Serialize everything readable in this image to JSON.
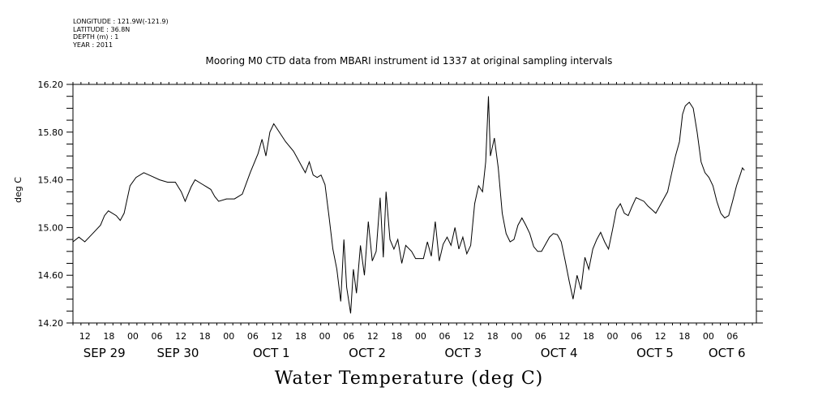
{
  "header": {
    "longitude": "LONGITUDE : 121.9W(-121.9)",
    "latitude": "LATITUDE : 36.8N",
    "depth": "DEPTH (m) : 1",
    "year": "YEAR : 2011"
  },
  "chart_data": {
    "type": "line",
    "title": "Mooring M0 CTD data from MBARI instrument id 1337 at original sampling intervals",
    "xlabel": "Water Temperature (deg C)",
    "ylabel": "deg C",
    "ylim": [
      14.2,
      16.2
    ],
    "yticks": [
      "14.20",
      "14.60",
      "15.00",
      "15.40",
      "15.80",
      "16.20"
    ],
    "xlim": [
      "2011-09-29 09:00",
      "2011-10-06 12:00"
    ],
    "x_hour_ticks": [
      "12",
      "18",
      "00",
      "06",
      "12",
      "18",
      "00",
      "06",
      "12",
      "18",
      "00",
      "06",
      "12",
      "18",
      "00",
      "06",
      "12",
      "18",
      "00",
      "06",
      "12",
      "18",
      "00",
      "06",
      "12",
      "18",
      "00",
      "06"
    ],
    "x_day_labels": [
      "SEP 29",
      "SEP 30",
      "OCT  1",
      "OCT  2",
      "OCT  3",
      "OCT  4",
      "OCT  5",
      "OCT  6"
    ],
    "grid": false,
    "series": [
      {
        "color": "#000000",
        "hours_since_2011-09-29_09:00": [
          0,
          2,
          4,
          6,
          8,
          10,
          12,
          13,
          15,
          17,
          18,
          20,
          22,
          24,
          26,
          28,
          30,
          33,
          36,
          38,
          40,
          42,
          43,
          44,
          46,
          48,
          50,
          52,
          54,
          56,
          58,
          60,
          62,
          63,
          64,
          66,
          68,
          70,
          71,
          72,
          73,
          74,
          76,
          78,
          80,
          82,
          84,
          86,
          88,
          90,
          91,
          92,
          94,
          96,
          97,
          98,
          99,
          100,
          101,
          102,
          103,
          104,
          105,
          106,
          107,
          108,
          109,
          110,
          111,
          112,
          113,
          114,
          115,
          116,
          117,
          118,
          119,
          120,
          121,
          122,
          123,
          124,
          125,
          126,
          127,
          128,
          130,
          132,
          134,
          136,
          138,
          140,
          142,
          143,
          144,
          146,
          148,
          150,
          151,
          152,
          153,
          154,
          155,
          156,
          157,
          158,
          159,
          160,
          162,
          164,
          166,
          168,
          170,
          172,
          174,
          176,
          178,
          180,
          182,
          184,
          186,
          188,
          190,
          192,
          194,
          196,
          198,
          200,
          202,
          204,
          206,
          208,
          210,
          212,
          214,
          215,
          216,
          218,
          220,
          222,
          224,
          226,
          228,
          230,
          232,
          234,
          236,
          238,
          240,
          242,
          244,
          246,
          248,
          250,
          252,
          254,
          256,
          258,
          260,
          262,
          264,
          266,
          268,
          270,
          272,
          274,
          276,
          278,
          280,
          282,
          284,
          286,
          288,
          290,
          292,
          294,
          296,
          298,
          300,
          302,
          304,
          306,
          308,
          310,
          312,
          314,
          316,
          318,
          320,
          322,
          324,
          326,
          328,
          330,
          332,
          334,
          336,
          338,
          340,
          342,
          344,
          346,
          348,
          350,
          352,
          354,
          356,
          358,
          360,
          362,
          364,
          366,
          368,
          370,
          372,
          374,
          376,
          378,
          380,
          382,
          384,
          386,
          388,
          390,
          392,
          394,
          396,
          398,
          400,
          402,
          404,
          406,
          408,
          410,
          412,
          414,
          416,
          418,
          420,
          422,
          424,
          426,
          428,
          430,
          432,
          434,
          436,
          438,
          440,
          442,
          444,
          446,
          448,
          450,
          452,
          454,
          456,
          458,
          460,
          462,
          464,
          466,
          468,
          470,
          472,
          474,
          476,
          478,
          480,
          482,
          484,
          486,
          488,
          490,
          492,
          494,
          496,
          498,
          500,
          502,
          504,
          506,
          508,
          510,
          512,
          514,
          516,
          518,
          520,
          522,
          524,
          526,
          528,
          530,
          532,
          534,
          536,
          538,
          540,
          542,
          544,
          546,
          548,
          550,
          552,
          554,
          556,
          558,
          560,
          562,
          564,
          566,
          568,
          570,
          572,
          574,
          576,
          578,
          580,
          582,
          584,
          586,
          588,
          590,
          592,
          594,
          596,
          598,
          600,
          602,
          604,
          606,
          608,
          610,
          612,
          614,
          616,
          618,
          620,
          622,
          624,
          626,
          628,
          630,
          632,
          634,
          636,
          638,
          640,
          642,
          644,
          646,
          648,
          650,
          652,
          654,
          656,
          658,
          660,
          662,
          664,
          666,
          668,
          670,
          672,
          674,
          676,
          678,
          680,
          682,
          684,
          686,
          688,
          690,
          692,
          694,
          696,
          698,
          700,
          702,
          704,
          706,
          708,
          710,
          712,
          714,
          716,
          718,
          720,
          722,
          724,
          726,
          728,
          730,
          732,
          734,
          736,
          738,
          740,
          742,
          744,
          746,
          748,
          750,
          752,
          754,
          756,
          758,
          760,
          762,
          764,
          766,
          768,
          770,
          772,
          774,
          776,
          778,
          780,
          782,
          784,
          786,
          788,
          790,
          792,
          794,
          796,
          798,
          800,
          802,
          804,
          806,
          808,
          810,
          812,
          814,
          816,
          818,
          820,
          822,
          824,
          826,
          828,
          830,
          832,
          834,
          836,
          838,
          840,
          842,
          844,
          846,
          848,
          850,
          852,
          854,
          856,
          858,
          860,
          862,
          864,
          866,
          868,
          870,
          872,
          874,
          876,
          878,
          880,
          882,
          884,
          886,
          888,
          890,
          892,
          894,
          896,
          898,
          900,
          902,
          904,
          906,
          908,
          910,
          912,
          914,
          916,
          918,
          920,
          922,
          924,
          926,
          928,
          930,
          932,
          934,
          936,
          938,
          940,
          942,
          944,
          946,
          948,
          950,
          952,
          954,
          956,
          958,
          960,
          962,
          964,
          966,
          968,
          970,
          972,
          974,
          976,
          978,
          980,
          982,
          984,
          986,
          988,
          990,
          992,
          994,
          996,
          998,
          1000,
          1002,
          1004,
          1006,
          1008,
          1010,
          1012,
          1014,
          1016,
          1018,
          1020,
          1022,
          1024,
          1026,
          1028,
          1030,
          1032,
          1034,
          1036,
          1038,
          1040,
          1042,
          1044,
          1046,
          1048,
          1050,
          1052,
          1054,
          1056,
          1058,
          1060,
          1062,
          1064,
          1066,
          1068,
          1070,
          1072,
          1074,
          1076,
          1078,
          1080,
          1082,
          1084,
          1086,
          1088,
          1090,
          1092,
          1094,
          1096,
          1098,
          1100,
          1102,
          1104,
          1106,
          1108,
          1110,
          1112,
          1114,
          1116,
          1118,
          1120,
          1122,
          1124,
          1126,
          1128,
          1130,
          1132,
          1134,
          1136,
          1138,
          1140,
          1142,
          1144,
          1146,
          1148,
          1150,
          1152,
          1154,
          1156,
          1158,
          1160,
          1162,
          1164,
          1166,
          1168,
          1170,
          1172,
          1174,
          1176,
          1178,
          1180,
          1182,
          1184,
          1186,
          1188,
          1190,
          1192,
          1194,
          1196,
          1198,
          1200,
          1202,
          1204,
          1206,
          1208,
          1210,
          1212,
          1214,
          1216,
          1218,
          1220,
          1222,
          1224,
          1226,
          1228,
          1230,
          1232,
          1234,
          1236,
          1238,
          1240,
          1242,
          1244,
          1246,
          1248,
          1250,
          1252,
          1254,
          1256,
          1258,
          1260,
          1262,
          1264,
          1266,
          1268,
          1270,
          1272,
          1274,
          1276,
          1278,
          1280,
          1282,
          1284,
          1286,
          1288,
          1290,
          1292,
          1294,
          1296,
          1298,
          1300
        ],
        "values_placeholder": true
      }
    ]
  }
}
